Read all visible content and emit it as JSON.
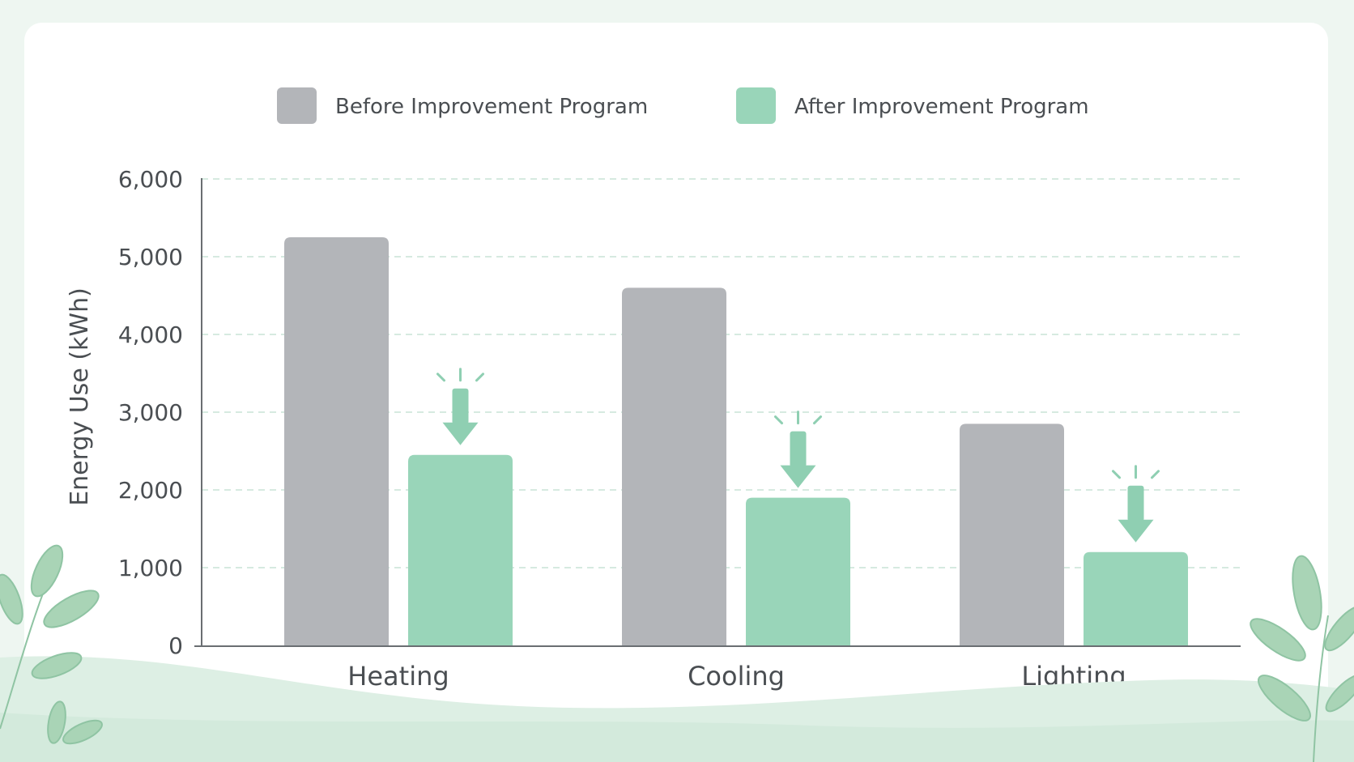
{
  "colors": {
    "before": "#b3b5b9",
    "after": "#99d5b9",
    "accent": "#8fcfb2",
    "axis": "#6a6e72",
    "grid": "#d6eae0",
    "text": "#4a4e52",
    "page_bg": "#eef6f1",
    "leaf": "#a9d4b6",
    "hills": "#ddefe4",
    "clouds": "#edf3f0"
  },
  "decorations": {
    "clouds": "cloud-icon",
    "leaves": "leaf-sprig-icon",
    "hills": "hills-icon"
  },
  "chart_data": {
    "type": "bar",
    "categories": [
      "Heating",
      "Cooling",
      "Lighting"
    ],
    "series": [
      {
        "name": "Before Improvement Program",
        "values": [
          5250,
          4600,
          2850
        ],
        "color": "#b3b5b9"
      },
      {
        "name": "After Improvement Program",
        "values": [
          2450,
          1900,
          1200
        ],
        "color": "#99d5b9"
      }
    ],
    "title": "",
    "xlabel": "",
    "ylabel": "Energy Use (kWh)",
    "ylim": [
      0,
      6000
    ],
    "yticks": [
      0,
      1000,
      2000,
      3000,
      4000,
      5000,
      6000
    ],
    "ytick_labels": [
      "0",
      "1,000",
      "2,000",
      "3,000",
      "4,000",
      "5,000",
      "6,000"
    ],
    "grid": true,
    "legend_position": "top",
    "annotations": "down-arrow-icon above each After bar"
  }
}
